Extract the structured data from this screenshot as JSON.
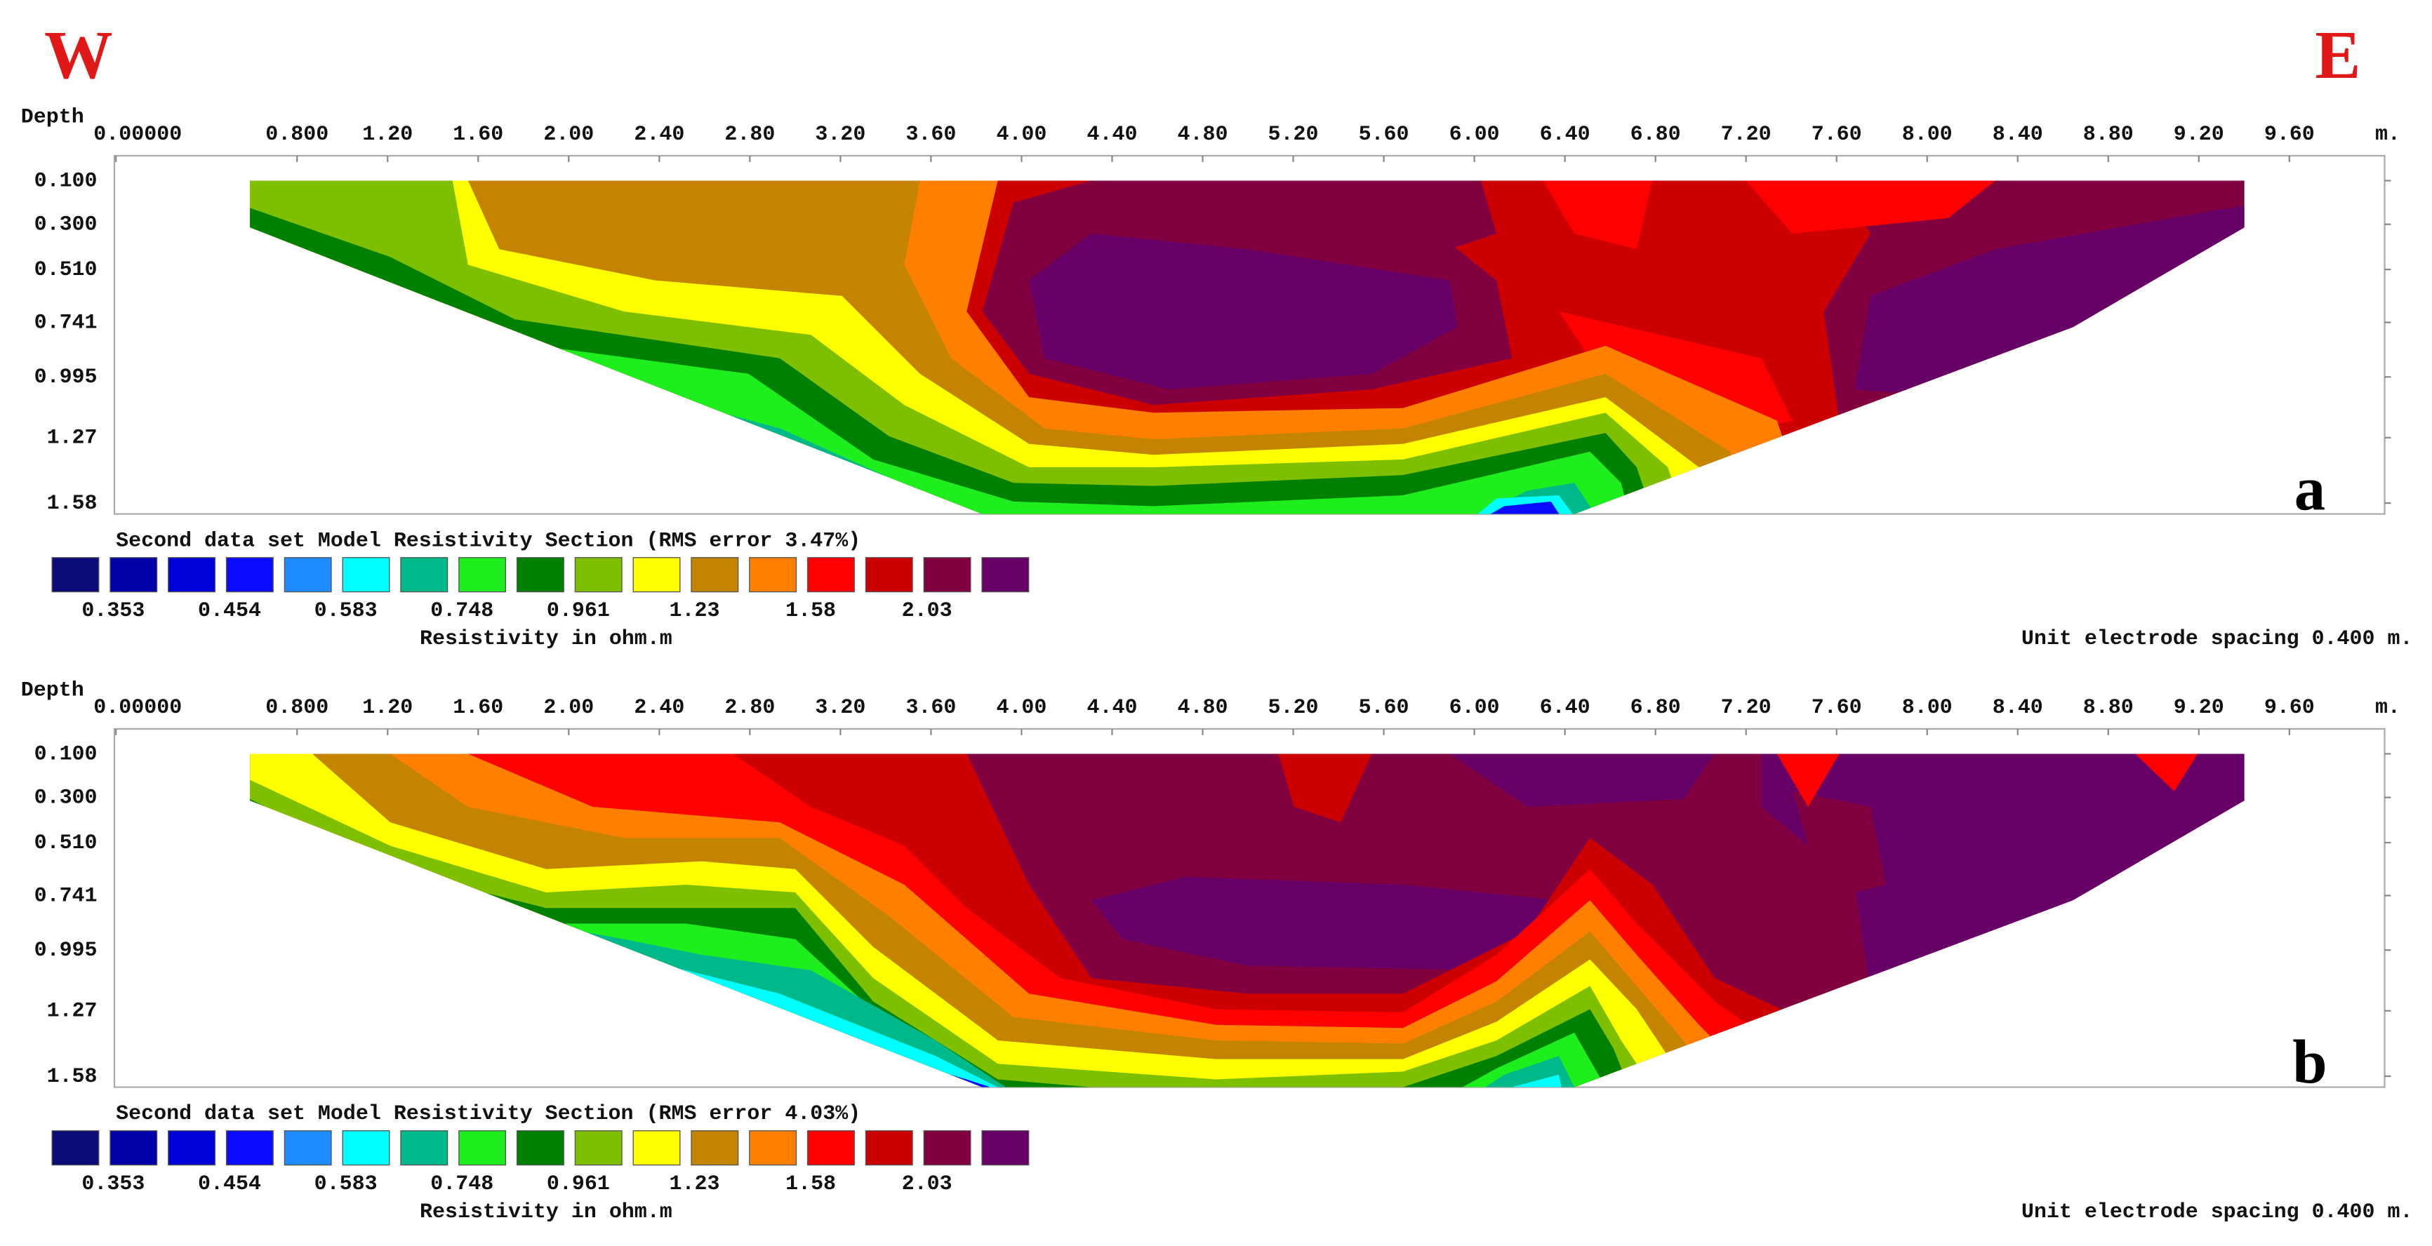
{
  "header": {
    "west": "W",
    "east": "E"
  },
  "panels": [
    {
      "label": "a",
      "depth_label": "Depth",
      "x_ticks": [
        "0.00000",
        "0.800",
        "1.20",
        "1.60",
        "2.00",
        "2.40",
        "2.80",
        "3.20",
        "3.60",
        "4.00",
        "4.40",
        "4.80",
        "5.20",
        "5.60",
        "6.00",
        "6.40",
        "6.80",
        "7.20",
        "7.60",
        "8.00",
        "8.40",
        "8.80",
        "9.20",
        "9.60"
      ],
      "x_unit": "m.",
      "depth_ticks": [
        "0.100",
        "0.300",
        "0.510",
        "0.741",
        "0.995",
        "1.27",
        "1.58"
      ],
      "legend_title": "Second data set Model Resistivity Section (RMS error 3.47%)",
      "legend_colors": [
        "#0a0a78",
        "#0000a8",
        "#0000d8",
        "#0a0aff",
        "#1e8cff",
        "#00ffff",
        "#00b98a",
        "#1eee1e",
        "#008000",
        "#7ec000",
        "#ffff00",
        "#c48400",
        "#ff8000",
        "#ff0000",
        "#cc0000",
        "#800040",
        "#660066"
      ],
      "legend_ticks": [
        "0.353",
        "0.454",
        "0.583",
        "0.748",
        "0.961",
        "1.23",
        "1.58",
        "2.03"
      ],
      "legend_axis_label": "Resistivity in ohm.m",
      "spacing_note": "Unit electrode spacing 0.400 m."
    },
    {
      "label": "b",
      "depth_label": "Depth",
      "x_ticks": [
        "0.00000",
        "0.800",
        "1.20",
        "1.60",
        "2.00",
        "2.40",
        "2.80",
        "3.20",
        "3.60",
        "4.00",
        "4.40",
        "4.80",
        "5.20",
        "5.60",
        "6.00",
        "6.40",
        "6.80",
        "7.20",
        "7.60",
        "8.00",
        "8.40",
        "8.80",
        "9.20",
        "9.60"
      ],
      "x_unit": "m.",
      "depth_ticks": [
        "0.100",
        "0.300",
        "0.510",
        "0.741",
        "0.995",
        "1.27",
        "1.58"
      ],
      "legend_title": "Second data set Model Resistivity Section (RMS error 4.03%)",
      "legend_colors": [
        "#0a0a78",
        "#0000a8",
        "#0000d8",
        "#0a0aff",
        "#1e8cff",
        "#00ffff",
        "#00b98a",
        "#1eee1e",
        "#008000",
        "#7ec000",
        "#ffff00",
        "#c48400",
        "#ff8000",
        "#ff0000",
        "#cc0000",
        "#800040",
        "#660066"
      ],
      "legend_ticks": [
        "0.353",
        "0.454",
        "0.583",
        "0.748",
        "0.961",
        "1.23",
        "1.58",
        "2.03"
      ],
      "legend_axis_label": "Resistivity in ohm.m",
      "spacing_note": "Unit electrode spacing 0.400 m."
    }
  ]
}
